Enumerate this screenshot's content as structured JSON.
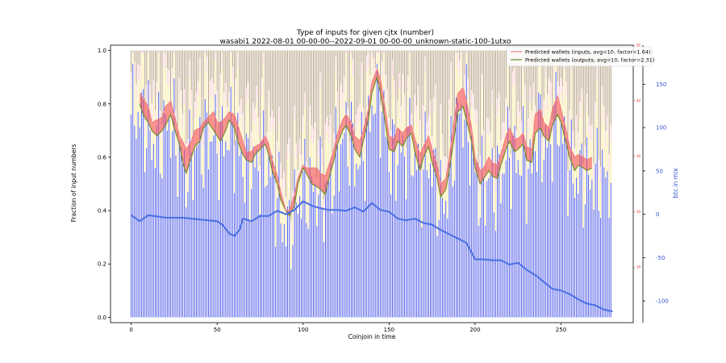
{
  "chart_data": {
    "type": "line",
    "title": "Type of inputs for given cjtx (number)",
    "subtitle": "wasabi1 2022-08-01 00-00-00--2022-09-01 00-00-00_unknown-static-100-1utxo",
    "xlabel": "Coinjoin in time",
    "ylabel": "Fraction of input numbers",
    "y2label": "btc in mix",
    "xlim": [
      -12,
      292
    ],
    "ylim": [
      -0.02,
      1.02
    ],
    "y2lim": [
      -125,
      195
    ],
    "y3lim": [
      0,
      50
    ],
    "x_ticks": [
      0,
      50,
      100,
      150,
      200,
      250
    ],
    "y_ticks": [
      "0.0",
      "0.2",
      "0.4",
      "0.6",
      "0.8",
      "1.0"
    ],
    "y2_ticks": [
      -100,
      -50,
      0,
      50,
      100,
      150
    ],
    "y3_ticks": [
      10,
      20,
      30,
      40,
      50
    ],
    "grid": false,
    "legend_position": "top-right",
    "legend": [
      {
        "label": "Predicted wallets (inputs, avg=10, factor=1.64)",
        "color": "#f08080"
      },
      {
        "label": "Predicted wallets (outputs, avg=10, factor=2.31)",
        "color": "#6b8e23"
      }
    ],
    "n_coinjoins": 280,
    "btc_in_mix": {
      "x": [
        0,
        5,
        10,
        20,
        30,
        40,
        50,
        53,
        57,
        60,
        63,
        65,
        70,
        75,
        80,
        85,
        90,
        95,
        100,
        105,
        110,
        115,
        120,
        125,
        130,
        135,
        140,
        145,
        150,
        155,
        160,
        165,
        170,
        175,
        180,
        185,
        190,
        195,
        200,
        205,
        210,
        215,
        220,
        225,
        230,
        235,
        240,
        245,
        250,
        255,
        260,
        265,
        270,
        275,
        280
      ],
      "y": [
        -1,
        -8,
        -1,
        -4,
        -4,
        -6,
        -8,
        -12,
        -22,
        -25,
        -18,
        -5,
        -8,
        -2,
        -2,
        4,
        0,
        5,
        15,
        10,
        7,
        5,
        5,
        4,
        8,
        3,
        13,
        5,
        3,
        -5,
        -7,
        -5,
        -10,
        -12,
        -18,
        -23,
        -28,
        -33,
        -52,
        -52,
        -53,
        -53,
        -58,
        -56,
        -64,
        -70,
        -78,
        -86,
        -88,
        -92,
        -98,
        -103,
        -105,
        -110,
        -112
      ]
    },
    "outputs_series": {
      "x": [
        5,
        7,
        10,
        12,
        15,
        18,
        20,
        23,
        25,
        28,
        30,
        32,
        35,
        37,
        40,
        42,
        45,
        48,
        50,
        52,
        55,
        57,
        60,
        62,
        65,
        67,
        70,
        72,
        75,
        78,
        80,
        82,
        85,
        87,
        90,
        92,
        95,
        97,
        100,
        102,
        105,
        108,
        110,
        113,
        115,
        118,
        120,
        123,
        125,
        128,
        130,
        133,
        135,
        138,
        140,
        143,
        145,
        148,
        150,
        153,
        155,
        158,
        160,
        163,
        165,
        168,
        170,
        173,
        175,
        178,
        180,
        183,
        185,
        188,
        190,
        193,
        195,
        198,
        200,
        203,
        205,
        208,
        210,
        213,
        215,
        218,
        220,
        223,
        225,
        228,
        230,
        233,
        235,
        238,
        240,
        243,
        245,
        248,
        250,
        253,
        255,
        258,
        260,
        263,
        265,
        268
      ],
      "y": [
        0.8,
        0.76,
        0.73,
        0.7,
        0.68,
        0.7,
        0.72,
        0.76,
        0.71,
        0.65,
        0.58,
        0.54,
        0.6,
        0.64,
        0.66,
        0.71,
        0.73,
        0.7,
        0.68,
        0.66,
        0.7,
        0.74,
        0.71,
        0.66,
        0.61,
        0.59,
        0.58,
        0.61,
        0.63,
        0.65,
        0.61,
        0.55,
        0.5,
        0.44,
        0.4,
        0.38,
        0.42,
        0.5,
        0.56,
        0.54,
        0.5,
        0.49,
        0.48,
        0.46,
        0.52,
        0.59,
        0.65,
        0.7,
        0.72,
        0.68,
        0.63,
        0.6,
        0.66,
        0.74,
        0.84,
        0.9,
        0.84,
        0.72,
        0.63,
        0.62,
        0.66,
        0.64,
        0.67,
        0.69,
        0.62,
        0.55,
        0.6,
        0.64,
        0.58,
        0.52,
        0.45,
        0.48,
        0.55,
        0.68,
        0.77,
        0.79,
        0.74,
        0.66,
        0.56,
        0.5,
        0.52,
        0.55,
        0.53,
        0.52,
        0.57,
        0.63,
        0.66,
        0.62,
        0.63,
        0.65,
        0.59,
        0.58,
        0.69,
        0.71,
        0.68,
        0.66,
        0.72,
        0.76,
        0.73,
        0.65,
        0.6,
        0.55,
        0.57,
        0.56,
        0.55,
        0.56
      ]
    },
    "inputs_series": {
      "x": [
        5,
        7,
        10,
        12,
        15,
        18,
        20,
        23,
        25,
        28,
        30,
        32,
        35,
        37,
        40,
        42,
        45,
        48,
        50,
        52,
        55,
        57,
        60,
        62,
        65,
        67,
        70,
        72,
        75,
        78,
        80,
        82,
        85,
        87,
        90,
        92,
        95,
        97,
        100,
        102,
        105,
        108,
        110,
        113,
        115,
        118,
        120,
        123,
        125,
        128,
        130,
        133,
        135,
        138,
        140,
        143,
        145,
        148,
        150,
        153,
        155,
        158,
        160,
        163,
        165,
        168,
        170,
        173,
        175,
        178,
        180,
        183,
        185,
        188,
        190,
        193,
        195,
        198,
        200,
        203,
        205,
        208,
        210,
        213,
        215,
        218,
        220,
        223,
        225,
        228,
        230,
        233,
        235,
        238,
        240,
        243,
        245,
        248,
        250,
        253,
        255,
        258,
        260,
        263,
        265,
        268
      ],
      "y": [
        0.84,
        0.82,
        0.79,
        0.73,
        0.74,
        0.75,
        0.79,
        0.81,
        0.76,
        0.68,
        0.66,
        0.63,
        0.66,
        0.7,
        0.71,
        0.73,
        0.75,
        0.77,
        0.73,
        0.73,
        0.75,
        0.77,
        0.76,
        0.72,
        0.66,
        0.62,
        0.62,
        0.64,
        0.65,
        0.68,
        0.65,
        0.59,
        0.53,
        0.47,
        0.4,
        0.4,
        0.46,
        0.52,
        0.57,
        0.56,
        0.56,
        0.56,
        0.54,
        0.53,
        0.57,
        0.63,
        0.69,
        0.74,
        0.76,
        0.73,
        0.68,
        0.66,
        0.7,
        0.78,
        0.88,
        0.93,
        0.89,
        0.77,
        0.68,
        0.67,
        0.71,
        0.69,
        0.71,
        0.72,
        0.67,
        0.61,
        0.64,
        0.68,
        0.63,
        0.57,
        0.5,
        0.52,
        0.6,
        0.74,
        0.84,
        0.86,
        0.81,
        0.71,
        0.6,
        0.55,
        0.56,
        0.6,
        0.58,
        0.57,
        0.61,
        0.68,
        0.71,
        0.67,
        0.67,
        0.69,
        0.64,
        0.63,
        0.76,
        0.78,
        0.73,
        0.71,
        0.78,
        0.83,
        0.78,
        0.7,
        0.64,
        0.6,
        0.61,
        0.6,
        0.59,
        0.6
      ]
    },
    "colors": {
      "inputs_line": "#f08080",
      "outputs_line": "#6b8e23",
      "fill_inputs_higher": "#f5505a",
      "fill_outputs_higher": "#28a050",
      "bar_blue": "#1f2fe0",
      "bar_yellow": "#f5e06a",
      "bar_pink": "#f5b0b0",
      "bar_brown": "#8b6a3a",
      "btc_line": "#4a6fe3",
      "axis_blue_text": "#3050d0",
      "axis_red_text": "#e03030"
    }
  }
}
